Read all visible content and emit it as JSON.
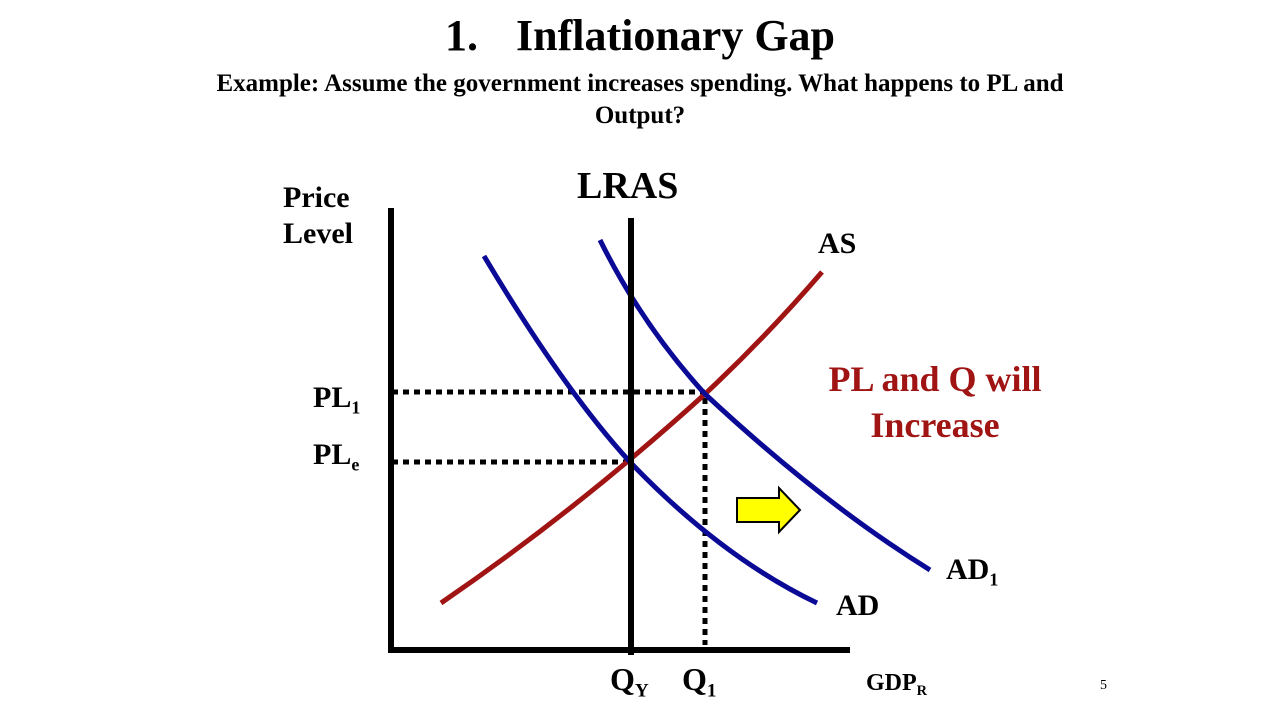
{
  "title": {
    "number": "1.",
    "text": "Inflationary Gap"
  },
  "subtitle": "Example: Assume the government increases spending. What happens to PL and Output?",
  "diagram": {
    "y_axis_label_line1": "Price",
    "y_axis_label_line2": "Level",
    "x_axis_label": "GDP",
    "x_axis_label_sub": "R",
    "lras_label": "LRAS",
    "as_label": "AS",
    "ad_label": "AD",
    "ad1_label": "AD",
    "ad1_label_sub": "1",
    "pl1_label": "PL",
    "pl1_label_sub": "1",
    "ple_label": "PL",
    "ple_label_sub": "e",
    "qy_label": "Q",
    "qy_label_sub": "Y",
    "q1_label": "Q",
    "q1_label_sub": "1",
    "result_note": "PL and Q will Increase",
    "colors": {
      "as_curve": "#a01414",
      "ad_curves": "#0a0a96",
      "arrow_fill": "#ffff00",
      "result_note": "#a01414"
    }
  },
  "page_number": "5"
}
